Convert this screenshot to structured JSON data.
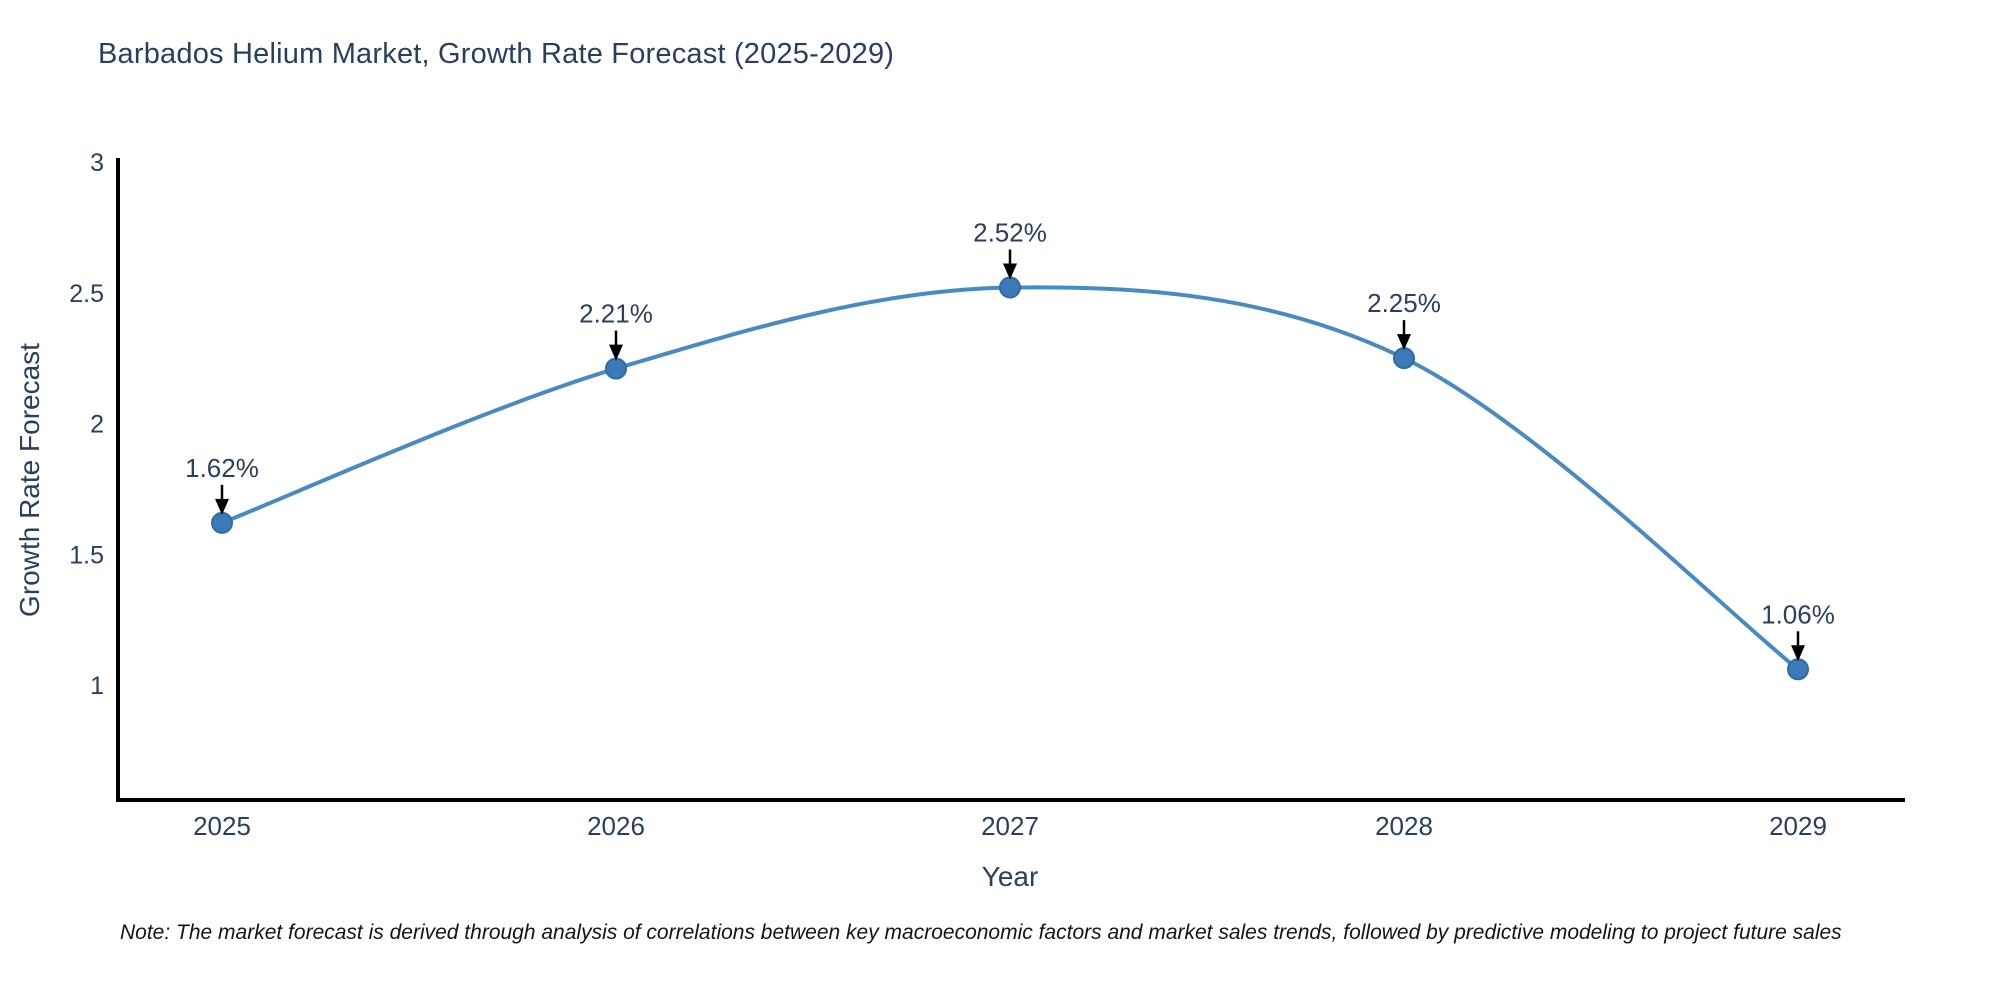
{
  "title": "Barbados Helium Market, Growth Rate Forecast (2025-2029)",
  "note": "Note: The market forecast is derived through analysis of correlations between key macroeconomic factors and market sales trends, followed by predictive modeling to project future sales",
  "chart_data": {
    "type": "line",
    "line_shape": "spline",
    "categories": [
      "2025",
      "2026",
      "2027",
      "2028",
      "2029"
    ],
    "x": [
      2025,
      2026,
      2027,
      2028,
      2029
    ],
    "values": [
      1.62,
      2.21,
      2.52,
      2.25,
      1.06
    ],
    "point_labels": [
      "1.62%",
      "2.21%",
      "2.52%",
      "2.25%",
      "1.06%"
    ],
    "title": "Barbados Helium Market, Growth Rate Forecast (2025-2029)",
    "xlabel": "Year",
    "ylabel": "Growth Rate Forecast",
    "yticks": [
      1,
      1.5,
      2,
      2.5,
      3
    ],
    "ylim": [
      0.56,
      3.0
    ],
    "xlim": [
      2024.74,
      2029.27
    ],
    "grid": false,
    "legend_position": "none",
    "colors": {
      "line": "#4a8ac2",
      "marker_fill": "#3b7ab8",
      "marker_edge": "#2f6ba6",
      "axis_line": "#000000",
      "tick_text": "#2a3f5f",
      "annotation_text": "#2a3f5f",
      "annotation_arrow": "#000000",
      "title_text": "#2a3f5f",
      "note_text": "#111418"
    }
  }
}
